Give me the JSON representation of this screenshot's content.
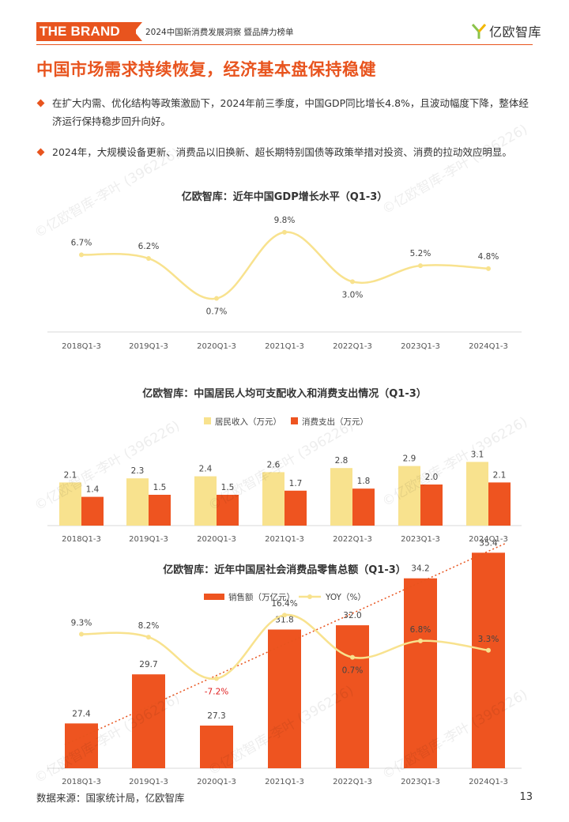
{
  "header": {
    "brand": "THE BRAND",
    "subtitle": "2024中国新消费发展洞察 暨品牌力榜单",
    "logo_text": "亿欧智库"
  },
  "page_title": "中国市场需求持续恢复，经济基本盘保持稳健",
  "bullets": [
    "在扩大内需、优化结构等政策激励下，2024年前三季度，中国GDP同比增长4.8%，且波动幅度下降，整体经济运行保持稳步回升向好。",
    "2024年，大规模设备更新、消费品以旧换新、超长期特别国债等政策举措对投资、消费的拉动效应明显。"
  ],
  "watermark": "©亿欧智库-李叶 (396226)",
  "chart_data": [
    {
      "type": "line",
      "title": "亿欧智库：近年中国GDP增长水平（Q1-3）",
      "categories": [
        "2018Q1-3",
        "2019Q1-3",
        "2020Q1-3",
        "2021Q1-3",
        "2022Q1-3",
        "2023Q1-3",
        "2024Q1-3"
      ],
      "values": [
        6.7,
        6.2,
        0.7,
        9.8,
        3.0,
        5.2,
        4.8
      ],
      "value_labels": [
        "6.7%",
        "6.2%",
        "0.7%",
        "9.8%",
        "3.0%",
        "5.2%",
        "4.8%"
      ],
      "color": "#f8e28e"
    },
    {
      "type": "bar",
      "title": "亿欧智库：中国居民人均可支配收入和消费支出情况（Q1-3）",
      "categories": [
        "2018Q1-3",
        "2019Q1-3",
        "2020Q1-3",
        "2021Q1-3",
        "2022Q1-3",
        "2023Q1-3",
        "2024Q1-3"
      ],
      "series": [
        {
          "name": "居民收入（万元）",
          "values": [
            2.1,
            2.3,
            2.4,
            2.6,
            2.8,
            2.9,
            3.1
          ],
          "labels": [
            "2.1",
            "2.3",
            "2.4",
            "2.6",
            "2.8",
            "2.9",
            "3.1"
          ],
          "color": "#f8e28e"
        },
        {
          "name": "消费支出（万元）",
          "values": [
            1.4,
            1.5,
            1.5,
            1.7,
            1.8,
            2.0,
            2.1
          ],
          "labels": [
            "1.4",
            "1.5",
            "1.5",
            "1.7",
            "1.8",
            "2.0",
            "2.1"
          ],
          "color": "#ee5420"
        }
      ],
      "legend": "top"
    },
    {
      "type": "bar",
      "title": "亿欧智库：近年中国居社会消费品零售总额（Q1-3）",
      "categories": [
        "2018Q1-3",
        "2019Q1-3",
        "2020Q1-3",
        "2021Q1-3",
        "2022Q1-3",
        "2023Q1-3",
        "2024Q1-3"
      ],
      "series": [
        {
          "name": "销售额（万亿元）",
          "values": [
            27.4,
            29.7,
            27.3,
            31.8,
            32.0,
            34.2,
            35.4
          ],
          "labels": [
            "27.4",
            "29.7",
            "27.3",
            "31.8",
            "32.0",
            "34.2",
            "35.4"
          ],
          "color": "#ee5420"
        },
        {
          "name": "YOY（%）",
          "type": "line",
          "values": [
            9.3,
            8.2,
            -7.2,
            16.4,
            0.7,
            6.8,
            3.3
          ],
          "labels": [
            "9.3%",
            "8.2%",
            "-7.2%",
            "16.4%",
            "0.7%",
            "6.8%",
            "3.3%"
          ],
          "color": "#f8e28e",
          "negative_label_color": "#e02020"
        }
      ],
      "trendline": {
        "style": "dotted",
        "color": "#e8541e"
      },
      "legend": "top"
    }
  ],
  "footer": {
    "source": "数据来源：国家统计局，亿欧智库",
    "page_number": "13"
  }
}
